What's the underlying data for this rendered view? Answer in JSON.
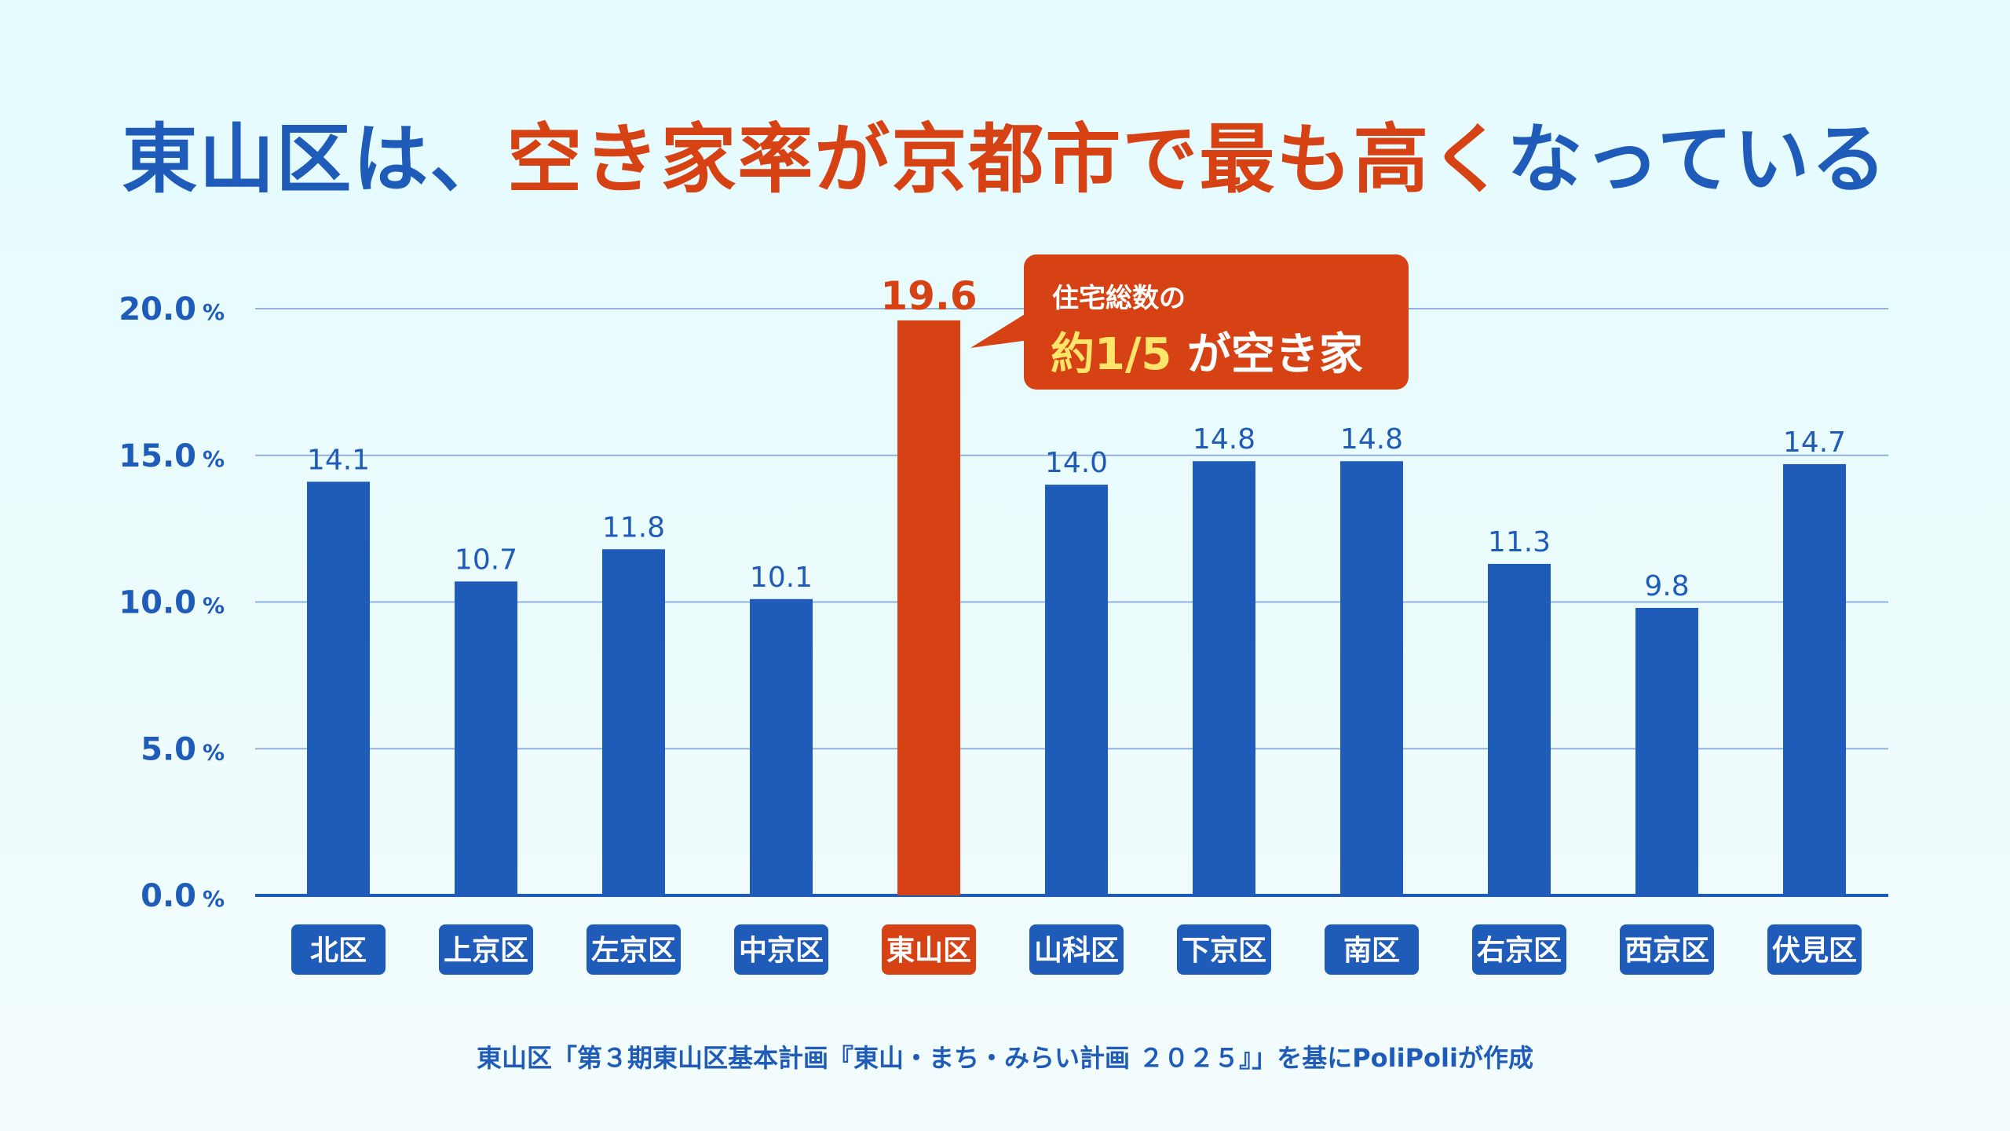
{
  "title": {
    "part1": "東山区は、",
    "part2": "空き家率が京都市で最も高く",
    "part3": "なっている"
  },
  "callout": {
    "line1": "住宅総数の",
    "prefix": "約",
    "highlight": "1/5",
    "suffix": " が空き家"
  },
  "source": "東山区「第３期東山区基本計画『東山・まち・みらい計画 ２０２５』」を基にPoliPoliが作成",
  "colors": {
    "bar": "#1f5bb9",
    "highlight": "#d74214",
    "gridline": "#8fb3de",
    "text": "#1f5bb9"
  },
  "chart_data": {
    "type": "bar",
    "categories": [
      "北区",
      "上京区",
      "左京区",
      "中京区",
      "東山区",
      "山科区",
      "下京区",
      "南区",
      "右京区",
      "西京区",
      "伏見区"
    ],
    "values": [
      14.1,
      10.7,
      11.8,
      10.1,
      19.6,
      14.0,
      14.8,
      14.8,
      11.3,
      9.8,
      14.7
    ],
    "value_labels": [
      "14.1",
      "10.7",
      "11.8",
      "10.1",
      "19.6",
      "14.0",
      "14.8",
      "14.8",
      "11.3",
      "9.8",
      "14.7"
    ],
    "highlight_category": "東山区",
    "ylim": [
      0,
      20
    ],
    "yticks": [
      0,
      5,
      10,
      15,
      20
    ],
    "ytick_labels": [
      "0.0",
      "5.0",
      "10.0",
      "15.0",
      "20.0"
    ],
    "y_unit": "%",
    "grid": true,
    "xlabel": "",
    "ylabel": ""
  }
}
